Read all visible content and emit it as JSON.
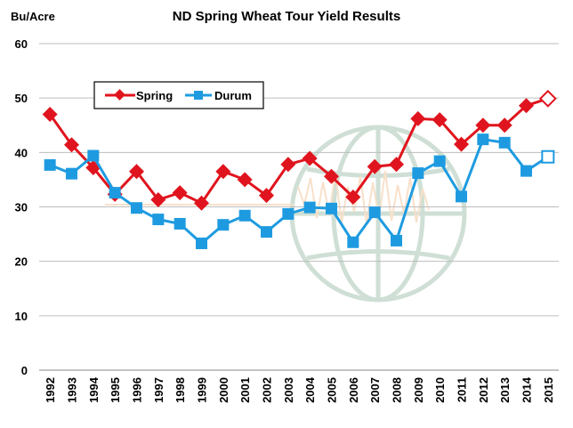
{
  "chart_data": {
    "type": "line",
    "title": "ND Spring Wheat Tour Yield Results",
    "ylabel": "Bu/Acre",
    "xlabel": "",
    "ylim": [
      0,
      60
    ],
    "yticks": [
      0,
      10,
      20,
      30,
      40,
      50,
      60
    ],
    "grid": true,
    "legend_position": "top-left",
    "categories": [
      "1992",
      "1993",
      "1994",
      "1995",
      "1996",
      "1997",
      "1998",
      "1999",
      "2000",
      "2001",
      "2002",
      "2003",
      "2004",
      "2005",
      "2006",
      "2007",
      "2008",
      "2009",
      "2010",
      "2011",
      "2012",
      "2013",
      "2014",
      "2015"
    ],
    "series": [
      {
        "name": "Spring",
        "color": "#e0141e",
        "marker": "diamond",
        "values": [
          47,
          41.4,
          37.2,
          32.3,
          36.5,
          31.3,
          32.6,
          30.7,
          36.5,
          35.0,
          32.1,
          37.8,
          38.9,
          35.6,
          31.8,
          37.4,
          37.8,
          46.2,
          46.0,
          41.5,
          45.0,
          45.0,
          48.6,
          49.9
        ],
        "last_point_open": true
      },
      {
        "name": "Durum",
        "color": "#1e9be0",
        "marker": "square",
        "values": [
          37.7,
          36.1,
          39.4,
          32.6,
          29.8,
          27.7,
          26.9,
          23.3,
          26.7,
          28.4,
          25.4,
          28.7,
          29.9,
          29.7,
          23.5,
          29.0,
          23.8,
          36.2,
          38.4,
          31.9,
          42.4,
          41.8,
          36.6,
          39.2
        ],
        "last_point_open": true
      }
    ]
  }
}
